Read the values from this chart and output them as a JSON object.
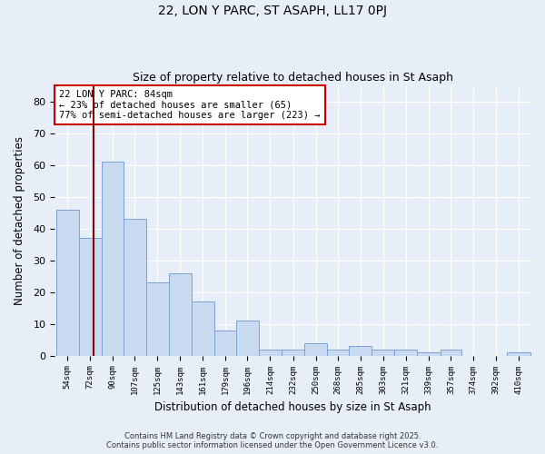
{
  "title1": "22, LON Y PARC, ST ASAPH, LL17 0PJ",
  "title2": "Size of property relative to detached houses in St Asaph",
  "xlabel": "Distribution of detached houses by size in St Asaph",
  "ylabel": "Number of detached properties",
  "bins": [
    54,
    72,
    90,
    107,
    125,
    143,
    161,
    179,
    196,
    214,
    232,
    250,
    268,
    285,
    303,
    321,
    339,
    357,
    374,
    392,
    410
  ],
  "values": [
    46,
    37,
    61,
    43,
    23,
    26,
    17,
    8,
    11,
    2,
    2,
    4,
    2,
    3,
    2,
    2,
    1,
    2,
    0,
    0,
    1
  ],
  "bar_color": "#c9d9f0",
  "bar_edge_color": "#7ba3d4",
  "vline_x": 84,
  "vline_color": "#8b0000",
  "annotation_text": "22 LON Y PARC: 84sqm\n← 23% of detached houses are smaller (65)\n77% of semi-detached houses are larger (223) →",
  "annotation_box_color": "#ffffff",
  "annotation_box_edge": "#cc0000",
  "background_color": "#e8eef8",
  "ylim": [
    0,
    85
  ],
  "yticks": [
    0,
    10,
    20,
    30,
    40,
    50,
    60,
    70,
    80
  ],
  "footer1": "Contains HM Land Registry data © Crown copyright and database right 2025.",
  "footer2": "Contains public sector information licensed under the Open Government Licence v3.0."
}
